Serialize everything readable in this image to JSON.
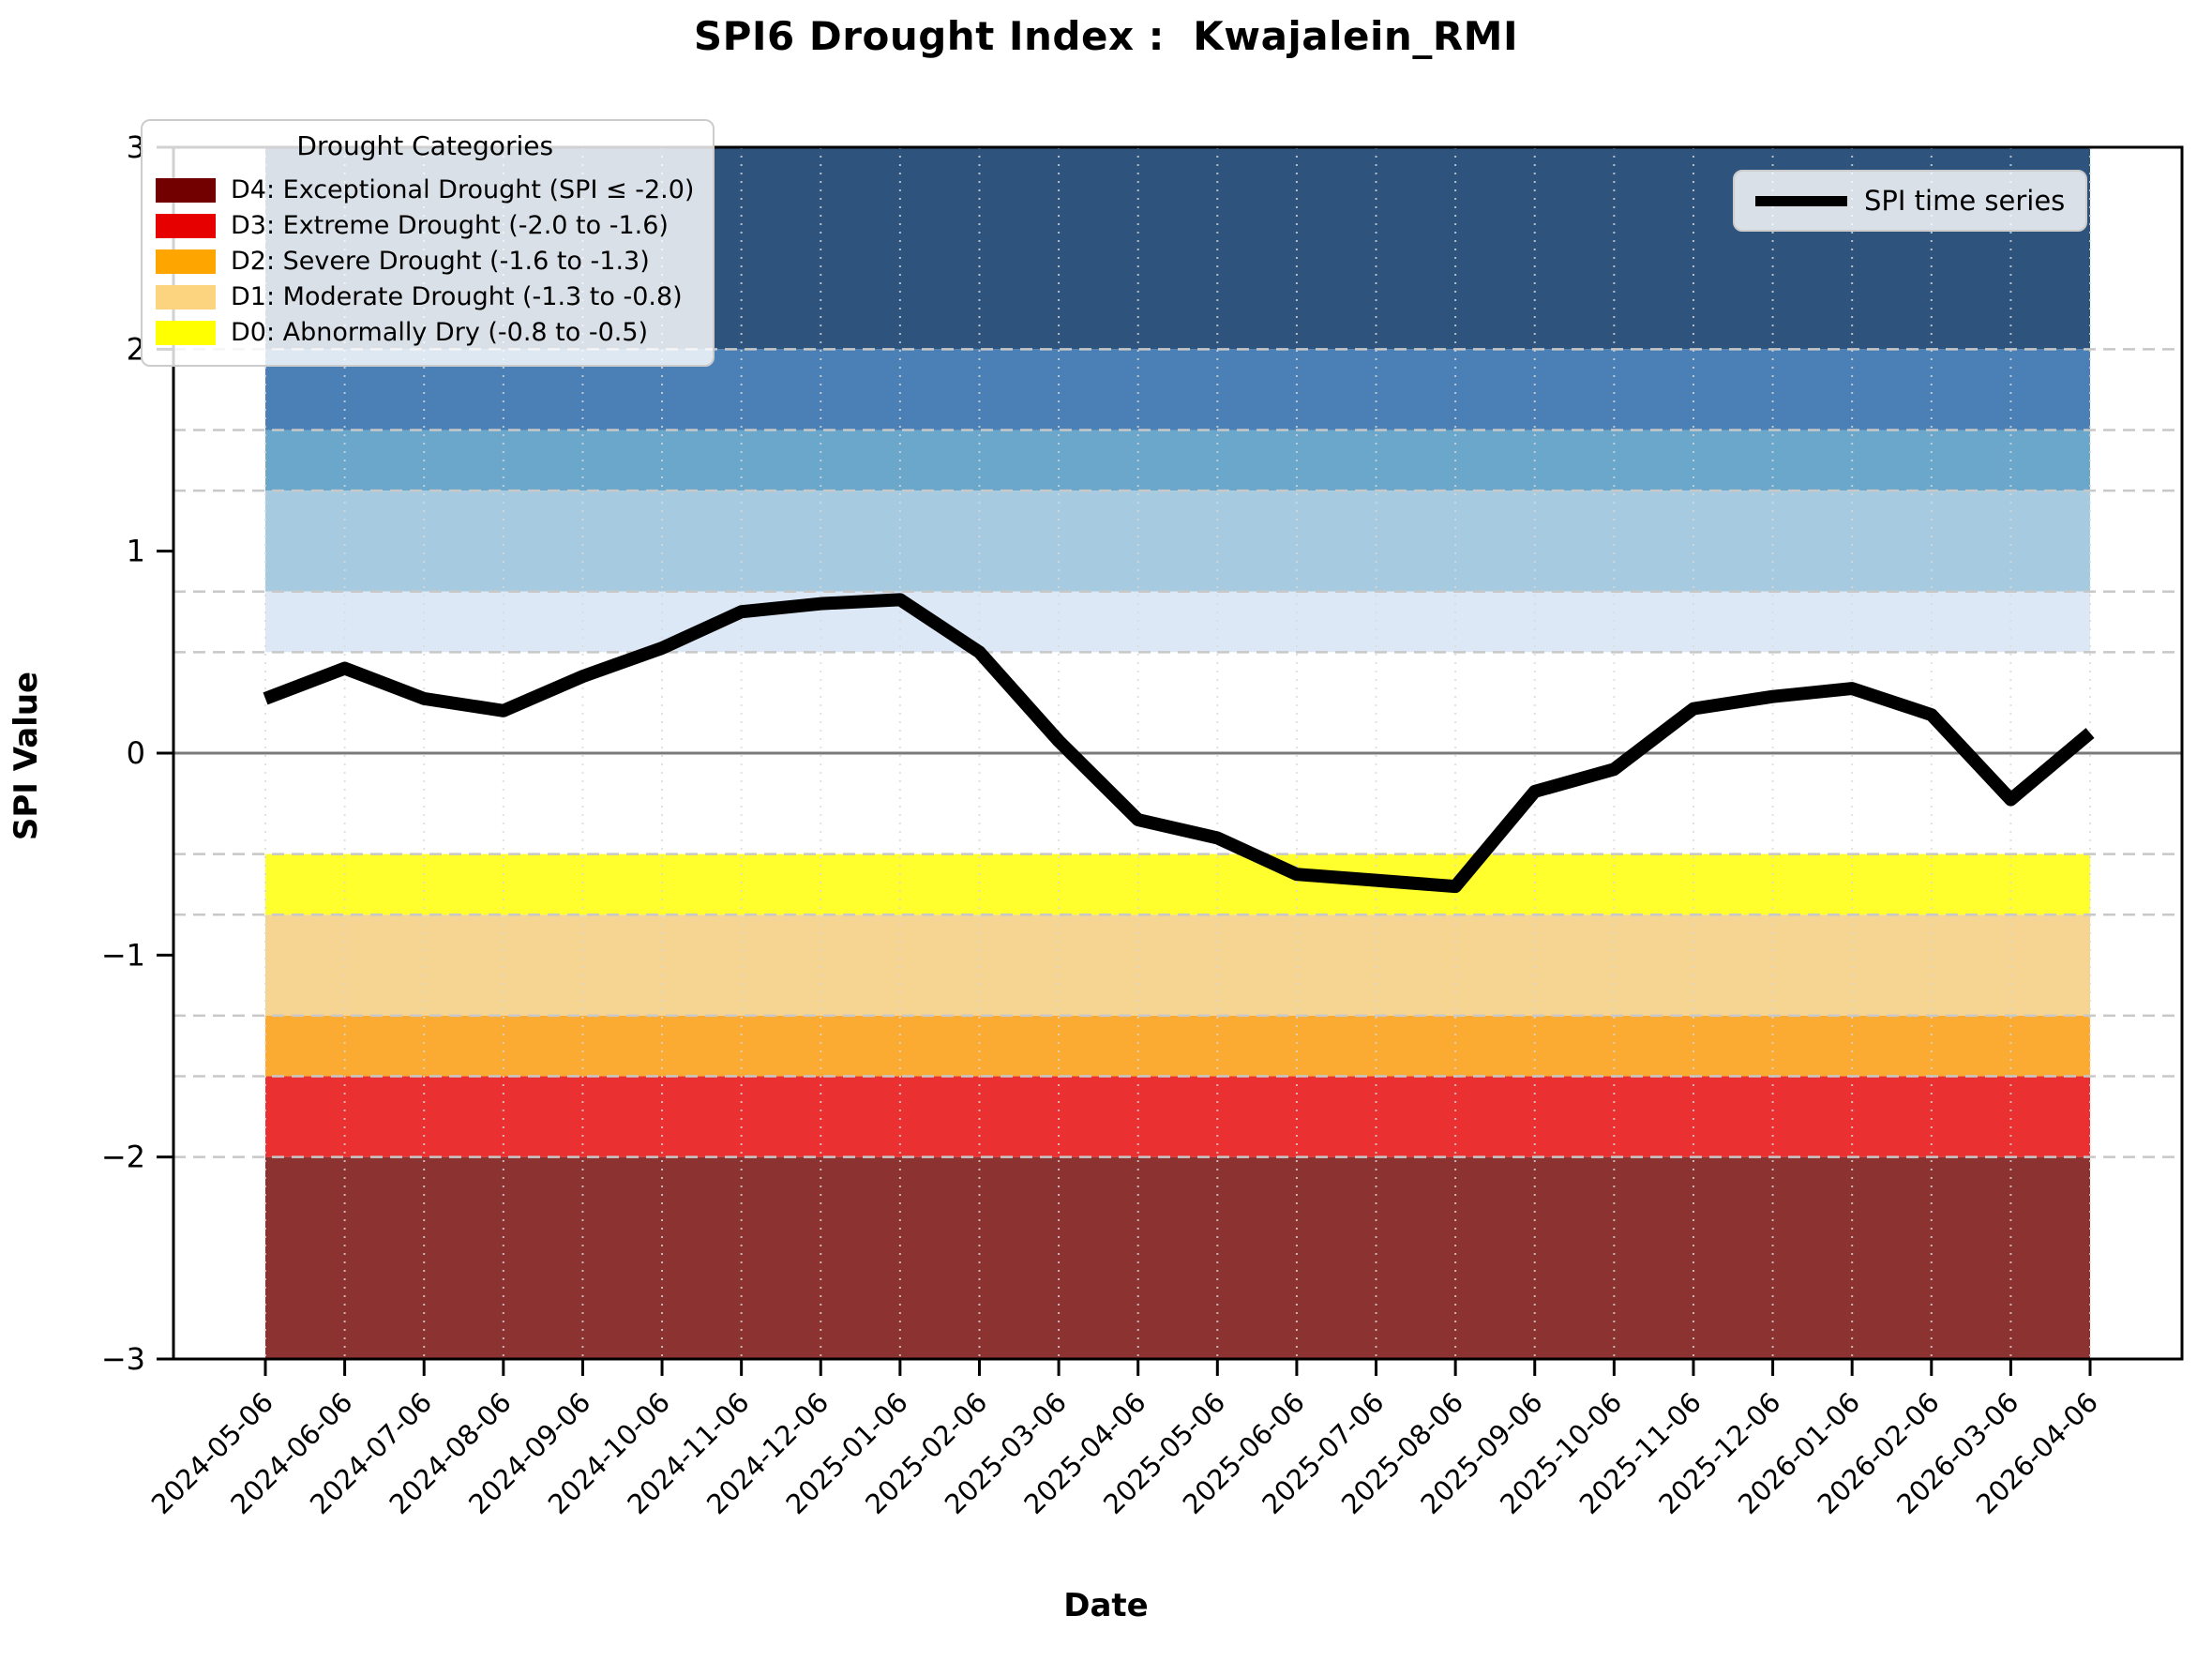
{
  "title": "SPI6 Drought Index :  Kwajalein_RMI",
  "legend": {
    "title": "Drought Categories",
    "series_label": "SPI time series"
  },
  "chart_data": {
    "type": "line",
    "title": "SPI6 Drought Index :  Kwajalein_RMI",
    "xlabel": "Date",
    "ylabel": "SPI Value",
    "ylim": [
      -3,
      3
    ],
    "grid": "dashed horizontal at drought/wet thresholds, dotted vertical at monthly ticks",
    "legend_position": {
      "drought_categories": "upper left",
      "spi_series": "upper right"
    },
    "yticks": [
      "3",
      "2",
      "1",
      "0",
      "−1",
      "−2",
      "−3"
    ],
    "ytick_values": [
      3,
      2,
      1,
      0,
      -1,
      -2,
      -3
    ],
    "threshold_gridlines": [
      2.0,
      1.6,
      1.3,
      0.8,
      0.5,
      -0.5,
      -0.8,
      -1.3,
      -1.6,
      -2.0
    ],
    "zero_line": 0,
    "x": [
      "2024-05-06",
      "2024-06-06",
      "2024-07-06",
      "2024-08-06",
      "2024-09-06",
      "2024-10-06",
      "2024-11-06",
      "2024-12-06",
      "2025-01-06",
      "2025-02-06",
      "2025-03-06",
      "2025-04-06",
      "2025-05-06",
      "2025-06-06",
      "2025-07-06",
      "2025-08-06",
      "2025-09-06",
      "2025-10-06",
      "2025-11-06",
      "2025-12-06",
      "2026-01-06",
      "2026-02-06",
      "2026-03-06",
      "2026-04-06"
    ],
    "series": [
      {
        "name": "SPI time series",
        "color": "#000000",
        "values": [
          0.27,
          0.42,
          0.27,
          0.21,
          0.38,
          0.52,
          0.7,
          0.74,
          0.76,
          0.5,
          0.06,
          -0.33,
          -0.42,
          -0.6,
          -0.63,
          -0.66,
          -0.19,
          -0.08,
          0.22,
          0.28,
          0.32,
          0.19,
          -0.23,
          0.1
        ]
      }
    ],
    "wet_bands": [
      {
        "name": "W4",
        "from": 2.0,
        "to": 3.0,
        "color": "#2e547e"
      },
      {
        "name": "W3",
        "from": 1.6,
        "to": 2.0,
        "color": "#4a80b5"
      },
      {
        "name": "W2",
        "from": 1.3,
        "to": 1.6,
        "color": "#6aa7cb"
      },
      {
        "name": "W1",
        "from": 0.8,
        "to": 1.3,
        "color": "#a6cbe0"
      },
      {
        "name": "W0",
        "from": 0.5,
        "to": 0.8,
        "color": "#dde8f7"
      }
    ],
    "drought_bands": [
      {
        "label": "D4: Exceptional Drought (SPI ≤ -2.0)",
        "from": -3.0,
        "to": -2.0,
        "band_color": "#8c3231",
        "legend_color": "#730000"
      },
      {
        "label": "D3: Extreme Drought (-2.0 to -1.6)",
        "from": -2.0,
        "to": -1.6,
        "band_color": "#ea3030",
        "legend_color": "#e60000"
      },
      {
        "label": "D2: Severe Drought (-1.6 to -1.3)",
        "from": -1.6,
        "to": -1.3,
        "band_color": "#fbab31",
        "legend_color": "#ffa500"
      },
      {
        "label": "D1: Moderate Drought (-1.3 to -0.8)",
        "from": -1.3,
        "to": -0.8,
        "band_color": "#f6d492",
        "legend_color": "#fcd37f"
      },
      {
        "label": "D0: Abnormally Dry (-0.8 to -0.5)",
        "from": -0.8,
        "to": -0.5,
        "band_color": "#ffff2e",
        "legend_color": "#ffff00"
      }
    ]
  }
}
